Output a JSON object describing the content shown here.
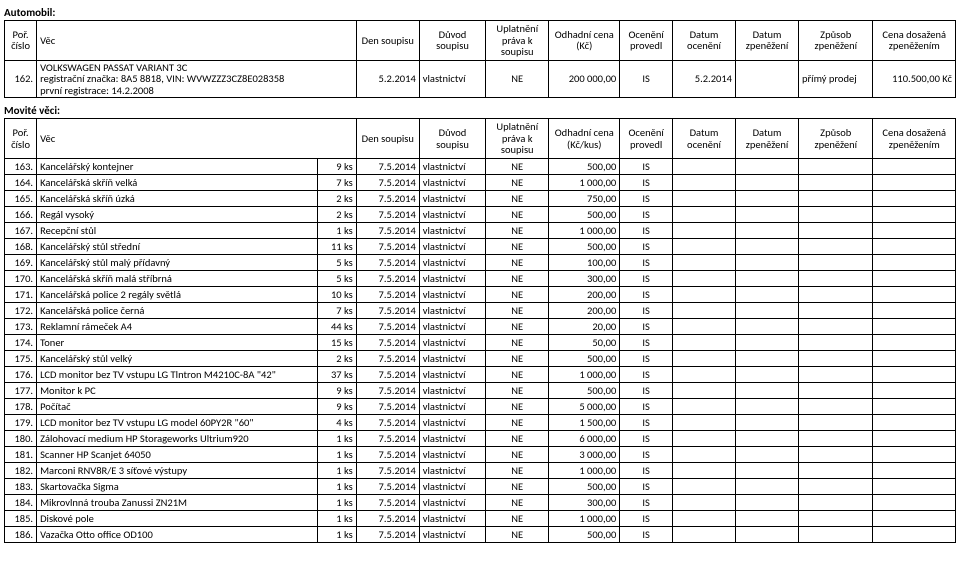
{
  "auto": {
    "section": "Automobil:",
    "headers": [
      "Poř. číslo",
      "Věc",
      "Den soupisu",
      "Důvod soupisu",
      "Uplatnění práva k soupisu",
      "Odhadní cena (Kč)",
      "Ocenění provedl",
      "Datum ocenění",
      "Datum zpeněžení",
      "Způsob zpeněžení",
      "Cena dosažená zpeněžením"
    ],
    "row": {
      "idx": "162.",
      "item": "VOLKSWAGEN PASSAT VARIANT 3C\nregistrační značka: 8A5 8818, VIN: WVWZZZ3CZ8E028358\nprvní registrace: 14.2.2008",
      "date": "5.2.2014",
      "reason": "vlastnictví",
      "right": "NE",
      "price": "200 000,00",
      "who": "IS",
      "d1": "5.2.2014",
      "d2": "",
      "method": "přímý prodej",
      "final": "110.500,00 Kč"
    }
  },
  "mov": {
    "section": "Movité věci:",
    "headers": [
      "Poř. číslo",
      "Věc",
      "Den soupisu",
      "Důvod soupisu",
      "Uplatnění práva k soupisu",
      "Odhadní cena (Kč/kus)",
      "Ocenění provedl",
      "Datum ocenění",
      "Datum zpeněžení",
      "Způsob zpeněžení",
      "Cena dosažená zpeněžením"
    ],
    "rows": [
      {
        "idx": "163.",
        "item": "Kancelářský kontejner",
        "qty": "9 ks",
        "date": "7.5.2014",
        "reason": "vlastnictví",
        "right": "NE",
        "price": "500,00",
        "who": "IS"
      },
      {
        "idx": "164.",
        "item": "Kancelářská skříň velká",
        "qty": "7 ks",
        "date": "7.5.2014",
        "reason": "vlastnictví",
        "right": "NE",
        "price": "1 000,00",
        "who": "IS"
      },
      {
        "idx": "165.",
        "item": "Kancelářská skříň úzká",
        "qty": "2 ks",
        "date": "7.5.2014",
        "reason": "vlastnictví",
        "right": "NE",
        "price": "750,00",
        "who": "IS"
      },
      {
        "idx": "166.",
        "item": "Regál vysoký",
        "qty": "2 ks",
        "date": "7.5.2014",
        "reason": "vlastnictví",
        "right": "NE",
        "price": "500,00",
        "who": "IS"
      },
      {
        "idx": "167.",
        "item": "Recepční stůl",
        "qty": "1 ks",
        "date": "7.5.2014",
        "reason": "vlastnictví",
        "right": "NE",
        "price": "1 000,00",
        "who": "IS"
      },
      {
        "idx": "168.",
        "item": "Kancelářský stůl střední",
        "qty": "11 ks",
        "date": "7.5.2014",
        "reason": "vlastnictví",
        "right": "NE",
        "price": "500,00",
        "who": "IS"
      },
      {
        "idx": "169.",
        "item": "Kancelářský stůl malý přídavný",
        "qty": "5 ks",
        "date": "7.5.2014",
        "reason": "vlastnictví",
        "right": "NE",
        "price": "100,00",
        "who": "IS"
      },
      {
        "idx": "170.",
        "item": "Kancelářská skříň malá stříbrná",
        "qty": "5 ks",
        "date": "7.5.2014",
        "reason": "vlastnictví",
        "right": "NE",
        "price": "300,00",
        "who": "IS"
      },
      {
        "idx": "171.",
        "item": "Kancelářská police 2 regály světlá",
        "qty": "10 ks",
        "date": "7.5.2014",
        "reason": "vlastnictví",
        "right": "NE",
        "price": "200,00",
        "who": "IS"
      },
      {
        "idx": "172.",
        "item": "Kancelářská police černá",
        "qty": "7 ks",
        "date": "7.5.2014",
        "reason": "vlastnictví",
        "right": "NE",
        "price": "200,00",
        "who": "IS"
      },
      {
        "idx": "173.",
        "item": "Reklamní rámeček A4",
        "qty": "44 ks",
        "date": "7.5.2014",
        "reason": "vlastnictví",
        "right": "NE",
        "price": "20,00",
        "who": "IS"
      },
      {
        "idx": "174.",
        "item": "Toner",
        "qty": "15 ks",
        "date": "7.5.2014",
        "reason": "vlastnictví",
        "right": "NE",
        "price": "50,00",
        "who": "IS"
      },
      {
        "idx": "175.",
        "item": "Kancelářský stůl velký",
        "qty": "2 ks",
        "date": "7.5.2014",
        "reason": "vlastnictví",
        "right": "NE",
        "price": "500,00",
        "who": "IS"
      },
      {
        "idx": "176.",
        "item": "LCD monitor bez TV vstupu LG Tlntron M4210C-8A \"42\"",
        "qty": "37 ks",
        "date": "7.5.2014",
        "reason": "vlastnictví",
        "right": "NE",
        "price": "1 000,00",
        "who": "IS"
      },
      {
        "idx": "177.",
        "item": "Monitor k PC",
        "qty": "9 ks",
        "date": "7.5.2014",
        "reason": "vlastnictví",
        "right": "NE",
        "price": "500,00",
        "who": "IS"
      },
      {
        "idx": "178.",
        "item": "Počítač",
        "qty": "9 ks",
        "date": "7.5.2014",
        "reason": "vlastnictví",
        "right": "NE",
        "price": "5 000,00",
        "who": "IS"
      },
      {
        "idx": "179.",
        "item": "LCD monitor bez TV vstupu LG model 60PY2R \"60\"",
        "qty": "4 ks",
        "date": "7.5.2014",
        "reason": "vlastnictví",
        "right": "NE",
        "price": "1 500,00",
        "who": "IS"
      },
      {
        "idx": "180.",
        "item": "Zálohovací medium HP Storageworks Ultrium920",
        "qty": "1 ks",
        "date": "7.5.2014",
        "reason": "vlastnictví",
        "right": "NE",
        "price": "6 000,00",
        "who": "IS"
      },
      {
        "idx": "181.",
        "item": "Scanner HP Scanjet 64050",
        "qty": "1 ks",
        "date": "7.5.2014",
        "reason": "vlastnictví",
        "right": "NE",
        "price": "3 000,00",
        "who": "IS"
      },
      {
        "idx": "182.",
        "item": "Marconi RNV8R/E 3 síťové výstupy",
        "qty": "1 ks",
        "date": "7.5.2014",
        "reason": "vlastnictví",
        "right": "NE",
        "price": "1 000,00",
        "who": "IS"
      },
      {
        "idx": "183.",
        "item": "Skartovačka Sigma",
        "qty": "1 ks",
        "date": "7.5.2014",
        "reason": "vlastnictví",
        "right": "NE",
        "price": "500,00",
        "who": "IS"
      },
      {
        "idx": "184.",
        "item": "Mikrovlnná trouba Zanussi ZN21M",
        "qty": "1 ks",
        "date": "7.5.2014",
        "reason": "vlastnictví",
        "right": "NE",
        "price": "300,00",
        "who": "IS"
      },
      {
        "idx": "185.",
        "item": "Diskové pole",
        "qty": "1 ks",
        "date": "7.5.2014",
        "reason": "vlastnictví",
        "right": "NE",
        "price": "1 000,00",
        "who": "IS"
      },
      {
        "idx": "186.",
        "item": "Vazačka Otto office OD100",
        "qty": "1 ks",
        "date": "7.5.2014",
        "reason": "vlastnictví",
        "right": "NE",
        "price": "500,00",
        "who": "IS"
      }
    ]
  }
}
